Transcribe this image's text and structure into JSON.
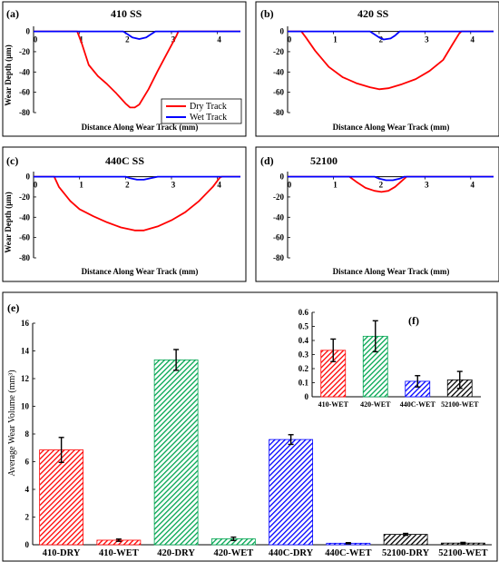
{
  "chart_data": [
    {
      "type": "line",
      "panel_label": "(a)",
      "title": "410 SS",
      "xlabel": "Distance Along Wear Track (mm)",
      "ylabel": "Wear Depth (µm)",
      "xlim": [
        0,
        4.5
      ],
      "ylim": [
        -80,
        5
      ],
      "xticks": [
        0,
        1,
        2,
        3,
        4
      ],
      "yticks": [
        0,
        -20,
        -40,
        -60,
        -80
      ],
      "legend": "bottom-right",
      "series": [
        {
          "name": "Dry Track",
          "color": "#ff0000",
          "x": [
            0,
            0.95,
            1.05,
            1.2,
            1.4,
            1.6,
            1.8,
            2.0,
            2.1,
            2.2,
            2.3,
            2.5,
            2.7,
            2.9,
            3.1,
            3.15,
            3.2,
            4.5
          ],
          "y": [
            0,
            0,
            -12,
            -33,
            -44,
            -52,
            -61,
            -71,
            -75,
            -75,
            -72,
            -57,
            -39,
            -22,
            -5,
            0,
            0,
            0
          ]
        },
        {
          "name": "Wet Track",
          "color": "#0000ff",
          "x": [
            0,
            1.95,
            2.05,
            2.15,
            2.3,
            2.45,
            2.55,
            2.65,
            4.5
          ],
          "y": [
            0,
            0,
            -3,
            -6,
            -7.5,
            -6,
            -3,
            0,
            0
          ]
        }
      ]
    },
    {
      "type": "line",
      "panel_label": "(b)",
      "title": "420 SS",
      "xlabel": "Distance Along Wear Track (mm)",
      "ylabel": "",
      "xlim": [
        0,
        4.5
      ],
      "ylim": [
        -80,
        5
      ],
      "xticks": [
        0,
        1,
        2,
        3,
        4
      ],
      "yticks": [
        0,
        -20,
        -40,
        -60,
        -80
      ],
      "series": [
        {
          "name": "Dry Track",
          "color": "#ff0000",
          "x": [
            0,
            0.3,
            0.4,
            0.6,
            0.9,
            1.2,
            1.5,
            1.8,
            2.0,
            2.2,
            2.5,
            2.8,
            3.1,
            3.4,
            3.6,
            3.75,
            3.8,
            4.5
          ],
          "y": [
            0,
            0,
            -6,
            -19,
            -35,
            -45,
            -51,
            -55,
            -57,
            -56,
            -52,
            -47,
            -39,
            -28,
            -13,
            -2,
            0,
            0
          ]
        },
        {
          "name": "Wet Track",
          "color": "#0000ff",
          "x": [
            0,
            1.8,
            1.9,
            2.0,
            2.1,
            2.25,
            2.35,
            2.45,
            4.5
          ],
          "y": [
            0,
            0,
            -3,
            -6,
            -8,
            -7,
            -4,
            0,
            0
          ]
        }
      ]
    },
    {
      "type": "line",
      "panel_label": "(c)",
      "title": "440C SS",
      "xlabel": "Distance Along Wear Track (mm)",
      "ylabel": "Wear Depth (µm)",
      "xlim": [
        0,
        4.5
      ],
      "ylim": [
        -80,
        5
      ],
      "xticks": [
        0,
        1,
        2,
        3,
        4
      ],
      "yticks": [
        0,
        -20,
        -40,
        -60,
        -80
      ],
      "series": [
        {
          "name": "Dry Track",
          "color": "#ff0000",
          "x": [
            0,
            0.45,
            0.55,
            0.8,
            1.0,
            1.3,
            1.6,
            1.9,
            2.2,
            2.4,
            2.7,
            3.0,
            3.3,
            3.6,
            3.9,
            4.05,
            4.1,
            4.5
          ],
          "y": [
            0,
            0,
            -10,
            -24,
            -32,
            -39,
            -45,
            -50,
            -53,
            -53,
            -49,
            -43,
            -35,
            -24,
            -10,
            -1,
            0,
            0
          ]
        },
        {
          "name": "Wet Track",
          "color": "#0000ff",
          "x": [
            0,
            2.0,
            2.1,
            2.25,
            2.4,
            2.55,
            2.7,
            4.5
          ],
          "y": [
            0,
            0,
            -1.5,
            -3,
            -3,
            -1.5,
            0,
            0
          ]
        }
      ]
    },
    {
      "type": "line",
      "panel_label": "(d)",
      "title": "52100",
      "xlabel": "Distance Along Wear Track (mm)",
      "ylabel": "",
      "xlim": [
        0,
        4.5
      ],
      "ylim": [
        -80,
        5
      ],
      "xticks": [
        0,
        1,
        2,
        3,
        4
      ],
      "yticks": [
        0,
        -20,
        -40,
        -60,
        -80
      ],
      "series": [
        {
          "name": "Dry Track",
          "color": "#ff0000",
          "x": [
            0,
            1.35,
            1.5,
            1.7,
            1.9,
            2.05,
            2.2,
            2.35,
            2.5,
            2.6,
            4.5
          ],
          "y": [
            0,
            0,
            -5,
            -11,
            -14,
            -15,
            -14,
            -10,
            -4,
            0,
            0
          ]
        },
        {
          "name": "Wet Track",
          "color": "#0000ff",
          "x": [
            0,
            1.9,
            2.0,
            2.15,
            2.3,
            2.45,
            2.55,
            4.5
          ],
          "y": [
            0,
            0,
            -2,
            -3.5,
            -3.5,
            -2,
            0,
            0
          ]
        }
      ]
    },
    {
      "type": "bar",
      "panel_label": "(e)",
      "ylabel": "Average Wear Volume (mm³)",
      "ylim": [
        0,
        16
      ],
      "yticks": [
        0,
        2,
        4,
        6,
        8,
        10,
        12,
        14,
        16
      ],
      "categories": [
        "410-DRY",
        "410-WET",
        "420-DRY",
        "420-WET",
        "440C-DRY",
        "440C-WET",
        "52100-DRY",
        "52100-WET"
      ],
      "values": [
        6.85,
        0.33,
        13.35,
        0.43,
        7.6,
        0.11,
        0.75,
        0.12
      ],
      "errors": [
        0.9,
        0.08,
        0.75,
        0.12,
        0.35,
        0.04,
        0.07,
        0.05
      ],
      "colors": [
        "#ff0000",
        "#ff0000",
        "#00a550",
        "#00a550",
        "#0000ff",
        "#0000ff",
        "#000000",
        "#000000"
      ]
    },
    {
      "type": "bar",
      "panel_label": "(f)",
      "inset": true,
      "ylim": [
        0,
        0.6
      ],
      "yticks": [
        0,
        0.1,
        0.2,
        0.3,
        0.4,
        0.5,
        0.6
      ],
      "categories": [
        "410-WET",
        "420-WET",
        "440C-WET",
        "52100-WET"
      ],
      "values": [
        0.33,
        0.43,
        0.11,
        0.12
      ],
      "errors": [
        0.08,
        0.11,
        0.04,
        0.06
      ],
      "colors": [
        "#ff0000",
        "#00a550",
        "#0000ff",
        "#000000"
      ]
    }
  ]
}
